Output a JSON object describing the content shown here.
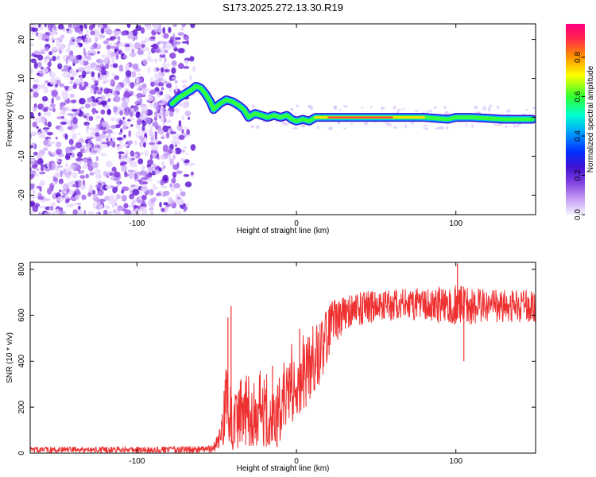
{
  "title": "S173.2025.272.13.30.R19",
  "chart_data": [
    {
      "type": "heatmap",
      "xlabel": "Height of straight line (km)",
      "ylabel": "Frequency (Hz)",
      "xlim": [
        -167,
        150
      ],
      "ylim": [
        -25,
        24
      ],
      "xticks": [
        -100,
        0,
        100
      ],
      "xtick_labels": [
        "-100",
        "0",
        "100"
      ],
      "yticks": [
        -20,
        -10,
        0,
        10,
        20
      ],
      "ytick_labels": [
        "-20",
        "-10",
        "0",
        "10",
        "20"
      ],
      "colorbar": {
        "label": "Normalized spectral amplitude",
        "range": [
          0,
          0.97
        ],
        "ticks": [
          0,
          0.2,
          0.4,
          0.6,
          0.8
        ],
        "tick_labels": [
          "0.0",
          "0.2",
          "0.4",
          "0.6",
          "0.8"
        ],
        "colors": [
          "#f5f0ff",
          "#c8a0f5",
          "#8040e0",
          "#4010d0",
          "#0030ff",
          "#00a0ff",
          "#00ffd0",
          "#30ff30",
          "#ffff00",
          "#ff9000",
          "#ff2050",
          "#ff0080"
        ]
      },
      "noise_region": {
        "x": [
          -167,
          -62
        ],
        "y": [
          -25,
          24
        ]
      },
      "signal_trace": {
        "x": [
          -78,
          -74,
          -70,
          -66,
          -63,
          -60,
          -57,
          -54,
          -52,
          -48,
          -44,
          -40,
          -36,
          -33,
          -30,
          -26,
          -22,
          -18,
          -14,
          -10,
          -6,
          -3,
          0,
          4,
          8,
          12,
          20,
          40,
          60,
          80,
          95,
          100,
          110,
          130,
          148
        ],
        "y": [
          3.5,
          5,
          6,
          7,
          8,
          7.5,
          6,
          4,
          2,
          3.5,
          4.5,
          4,
          3,
          2,
          0,
          1,
          0.5,
          0,
          0.5,
          0,
          0.5,
          -0.5,
          -1,
          -0.5,
          -1,
          0,
          0,
          0,
          0,
          0,
          -0.5,
          0,
          0,
          -0.5,
          -0.5
        ]
      }
    },
    {
      "type": "line",
      "xlabel": "Height of straight line (km)",
      "ylabel": "SNR (10 * v/v)",
      "xlim": [
        -167,
        150
      ],
      "ylim": [
        0,
        830
      ],
      "xticks": [
        -100,
        0,
        100
      ],
      "xtick_labels": [
        "-100",
        "0",
        "100"
      ],
      "yticks": [
        0,
        200,
        400,
        600,
        800
      ],
      "ytick_labels": [
        "0",
        "200",
        "400",
        "600",
        "800"
      ],
      "series": [
        {
          "name": "SNR",
          "color": "#ee3030",
          "envelope_x": [
            -167,
            -60,
            -52,
            -48,
            -46,
            -44,
            -42,
            -40,
            -36,
            -30,
            -24,
            -18,
            -12,
            -8,
            -4,
            0,
            8,
            16,
            22,
            30,
            50,
            80,
            100,
            120,
            150
          ],
          "envelope_mean": [
            15,
            15,
            20,
            60,
            150,
            220,
            180,
            120,
            160,
            200,
            200,
            180,
            150,
            260,
            300,
            320,
            380,
            450,
            560,
            610,
            640,
            650,
            640,
            640,
            640
          ],
          "envelope_spread": [
            12,
            15,
            20,
            50,
            120,
            160,
            160,
            110,
            150,
            170,
            170,
            160,
            140,
            160,
            170,
            170,
            160,
            150,
            100,
            80,
            70,
            70,
            90,
            70,
            70
          ],
          "spikes": [
            {
              "x": -41,
              "y": 640
            },
            {
              "x": -43,
              "y": 590
            },
            {
              "x": 101,
              "y": 825
            },
            {
              "x": 105,
              "y": 400
            },
            {
              "x": -15,
              "y": 380
            },
            {
              "x": 2,
              "y": 540
            }
          ]
        }
      ]
    }
  ]
}
